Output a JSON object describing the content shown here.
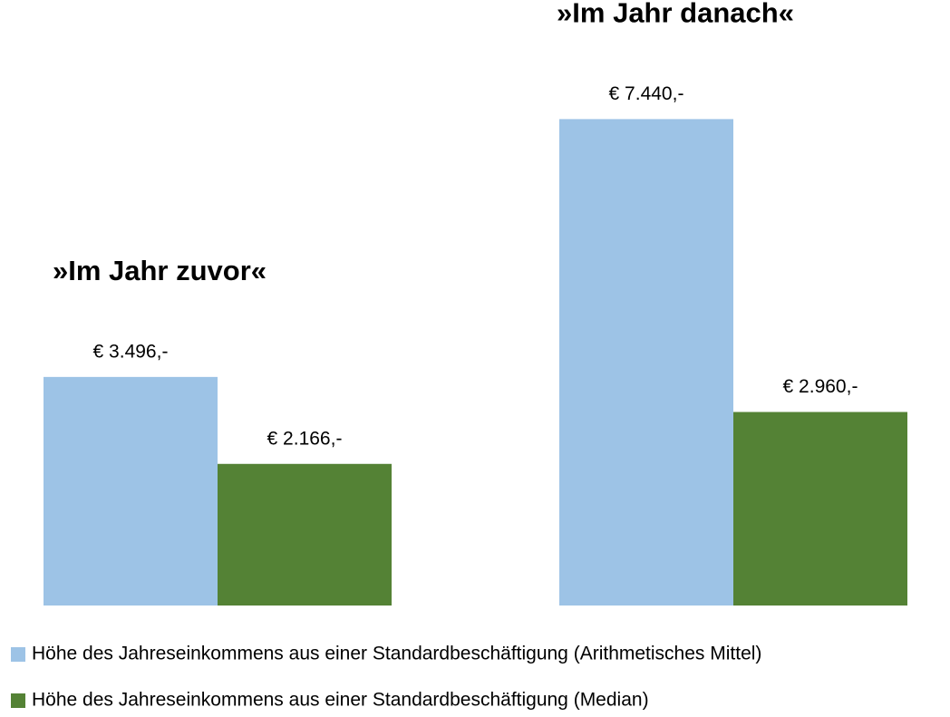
{
  "chart_data": {
    "type": "bar",
    "categories": [
      "»Im Jahr zuvor«",
      "»Im Jahr danach«"
    ],
    "series": [
      {
        "name": "Höhe des Jahreseinkommens aus einer Standardbeschäftigung (Arithmetisches Mittel)",
        "color": "#9dc3e6",
        "values": [
          3496,
          7440
        ],
        "value_labels": [
          "€ 3.496,-",
          "€ 7.440,-"
        ]
      },
      {
        "name": "Höhe des Jahreseinkommens aus einer Standardbeschäftigung (Median)",
        "color": "#548235",
        "values": [
          2166,
          2960
        ],
        "value_labels": [
          "€ 2.166,-",
          "€ 2.960,-"
        ]
      }
    ],
    "ylim": [
      0,
      8000
    ],
    "legend": "bottom"
  }
}
